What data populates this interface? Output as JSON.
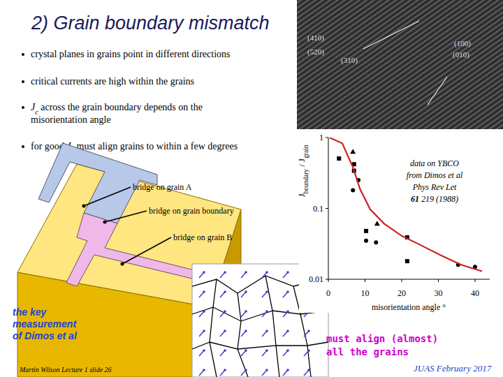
{
  "slide": {
    "title": "2) Grain boundary mismatch",
    "bullets": [
      [
        {
          "text": "crystal planes in grains point in different directions"
        }
      ],
      [
        {
          "text": "critical currents are high within the grains"
        }
      ],
      [
        {
          "text": "J",
          "i": true
        },
        {
          "text": "c",
          "sub": true,
          "i": true
        },
        {
          "text": " across the grain boundary depends on the"
        }
      ],
      [
        {
          "text": "misorientation angle"
        }
      ],
      [
        {
          "text": "for good "
        },
        {
          "text": "J",
          "i": true
        },
        {
          "text": "c",
          "sub": true,
          "i": true
        },
        {
          "text": " must align grains to within a few degrees"
        }
      ]
    ],
    "micrograph_labels": [
      "(410)",
      "(520)",
      "(310)",
      "(100)",
      "(010)"
    ],
    "bridge_labels": [
      "bridge on grain A",
      "bridge on grain boundary",
      "bridge on grain B"
    ],
    "key_note": [
      "the key",
      "measurement",
      "of Dimos et al"
    ],
    "align_note": [
      "must align (almost)",
      "all the grains"
    ],
    "footer_left": "Martin Wilson Lecture 1 slide 26",
    "footer_right": "JUAS February 2017"
  },
  "chart_data": {
    "type": "scatter",
    "ylabel": [
      {
        "text": "J"
      },
      {
        "text": "boundary",
        "sub": true
      },
      {
        "text": " / J"
      },
      {
        "text": "grain",
        "sub": true
      }
    ],
    "xlabel": "misorientation angle °",
    "annotation": [
      {
        "text": "data on YBCO"
      },
      {
        "text": "from Dimos et al"
      },
      {
        "text": "Phys Rev Let"
      },
      {
        "text": "61",
        "b": true
      },
      {
        "text": " 219 (1988)"
      }
    ],
    "log": "y",
    "xlim": [
      0,
      44
    ],
    "ylim": [
      0.01,
      1
    ],
    "xticks": [
      0,
      10,
      20,
      30,
      40
    ],
    "yticks": [
      0.01,
      0.1,
      1
    ],
    "series": [
      {
        "type": "scatter",
        "marker": "square",
        "color": "#000000",
        "x": [
          2.9,
          7,
          7,
          10.3,
          21.5,
          21.5
        ],
        "values": [
          0.506,
          0.42,
          0.34,
          0.048,
          0.039,
          0.018
        ]
      },
      {
        "type": "scatter",
        "marker": "circle",
        "color": "#000000",
        "x": [
          8.2,
          6.7,
          10.3,
          13,
          35.4,
          40
        ],
        "values": [
          0.25,
          0.18,
          0.035,
          0.033,
          0.016,
          0.015
        ]
      },
      {
        "type": "scatter",
        "marker": "triangle",
        "color": "#000000",
        "x": [
          6.7,
          13.3
        ],
        "values": [
          0.63,
          0.061
        ]
      },
      {
        "type": "line",
        "color": "#cc2222",
        "x": [
          0.3,
          3.8,
          6.7,
          8.6,
          11.4,
          15.2,
          20,
          24.8,
          30.5,
          36.2,
          41.9
        ],
        "values": [
          1,
          0.83,
          0.38,
          0.19,
          0.097,
          0.061,
          0.041,
          0.031,
          0.022,
          0.016,
          0.013
        ]
      }
    ]
  }
}
